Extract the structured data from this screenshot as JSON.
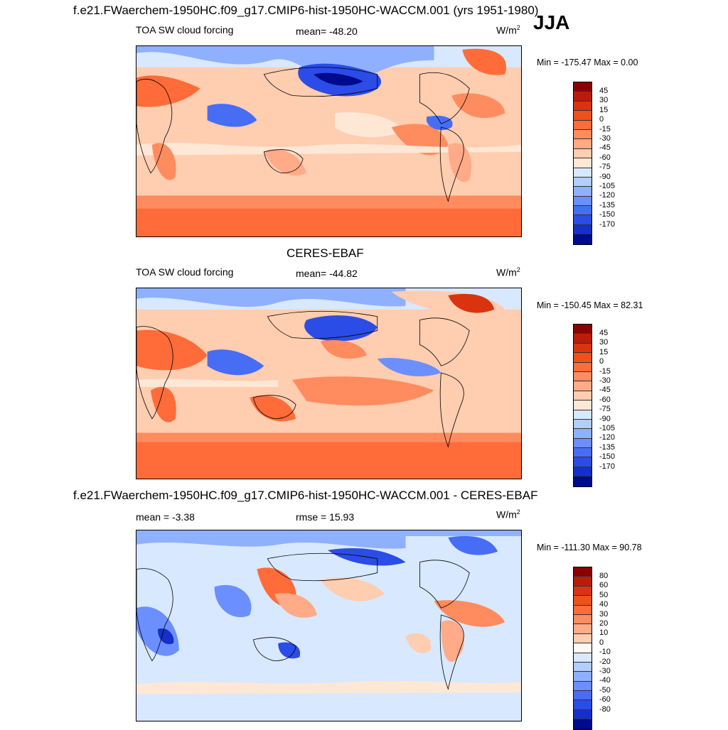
{
  "header": {
    "case_title": "f.e21.FWaerchem-1950HC.f09_g17.CMIP6-hist-1950HC-WACCM.001 (yrs 1951-1980)",
    "season": "JJA"
  },
  "panels": [
    {
      "id": "model",
      "variable": "TOA SW cloud forcing",
      "stat": "mean= -48.20",
      "units": "W/m",
      "units_exp": "2",
      "minmax": "Min = -175.47 Max =   0.00"
    },
    {
      "id": "obs",
      "title": "CERES-EBAF",
      "variable": "TOA SW cloud forcing",
      "stat": "mean= -44.82",
      "units": "W/m",
      "units_exp": "2",
      "minmax": "Min = -150.45 Max =  82.31"
    },
    {
      "id": "diff",
      "title": "f.e21.FWaerchem-1950HC.f09_g17.CMIP6-hist-1950HC-WACCM.001 - CERES-EBAF",
      "stat": "mean =  -3.38",
      "rmse": "rmse =  15.93",
      "units": "W/m",
      "units_exp": "2",
      "minmax": "Min = -111.30 Max =  90.78"
    }
  ],
  "colorbars": {
    "field": {
      "labels": [
        "45",
        "30",
        "15",
        "0",
        "-15",
        "-30",
        "-45",
        "-60",
        "-75",
        "-90",
        "-105",
        "-120",
        "-135",
        "-150",
        "-170"
      ],
      "colors": [
        "#8b0000",
        "#b81d0a",
        "#d9340f",
        "#f0501c",
        "#ff6c3a",
        "#ff8c5f",
        "#ffab88",
        "#ffcdb0",
        "#ffe7d6",
        "#d8e8ff",
        "#b4cdff",
        "#8fb0ff",
        "#6b8fff",
        "#476df5",
        "#2b4ce6",
        "#1530c8",
        "#000a8c"
      ]
    },
    "diff": {
      "labels": [
        "80",
        "60",
        "50",
        "40",
        "30",
        "20",
        "10",
        "0",
        "-10",
        "-20",
        "-30",
        "-40",
        "-50",
        "-60",
        "-80"
      ],
      "colors": [
        "#8b0000",
        "#b81d0a",
        "#d9340f",
        "#f0501c",
        "#ff6c3a",
        "#ff8c5f",
        "#ffab88",
        "#ffcdb0",
        "#fff7f2",
        "#d8e8ff",
        "#b4cdff",
        "#8fb0ff",
        "#6b8fff",
        "#476df5",
        "#2b4ce6",
        "#1530c8",
        "#000a8c"
      ]
    }
  }
}
